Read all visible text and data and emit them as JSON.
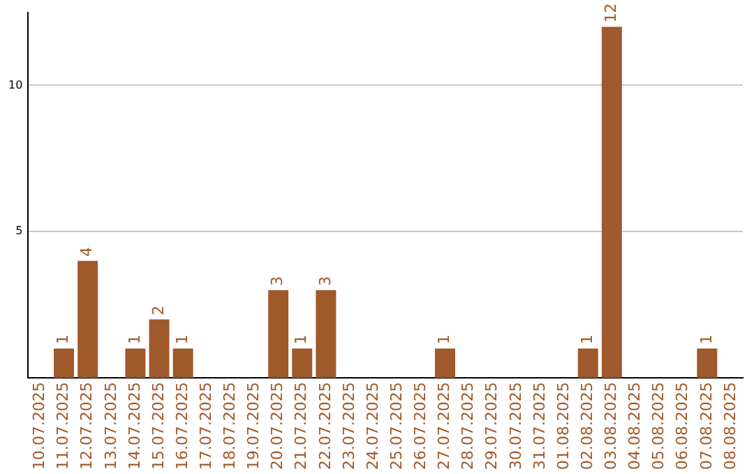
{
  "chart_data": {
    "type": "bar",
    "categories": [
      "10.07.2025",
      "11.07.2025",
      "12.07.2025",
      "13.07.2025",
      "14.07.2025",
      "15.07.2025",
      "16.07.2025",
      "17.07.2025",
      "18.07.2025",
      "19.07.2025",
      "20.07.2025",
      "21.07.2025",
      "22.07.2025",
      "23.07.2025",
      "24.07.2025",
      "25.07.2025",
      "26.07.2025",
      "27.07.2025",
      "28.07.2025",
      "29.07.2025",
      "30.07.2025",
      "31.07.2025",
      "01.08.2025",
      "02.08.2025",
      "03.08.2025",
      "04.08.2025",
      "05.08.2025",
      "06.08.2025",
      "07.08.2025",
      "08.08.2025"
    ],
    "values": [
      0,
      1,
      4,
      0,
      1,
      2,
      1,
      0,
      0,
      0,
      3,
      1,
      3,
      0,
      0,
      0,
      0,
      1,
      0,
      0,
      0,
      0,
      0,
      1,
      12,
      0,
      0,
      0,
      1,
      0
    ],
    "value_labels": [
      null,
      "1",
      "4",
      null,
      "1",
      "2",
      "1",
      null,
      null,
      null,
      "3",
      "1",
      "3",
      null,
      null,
      null,
      null,
      "1",
      null,
      null,
      null,
      null,
      null,
      "1",
      "12",
      null,
      null,
      null,
      "1",
      null
    ],
    "color": "#a0592b",
    "ylim": [
      0,
      12.5
    ],
    "yticks": [
      5,
      10
    ],
    "grid": "y",
    "legend": false
  }
}
